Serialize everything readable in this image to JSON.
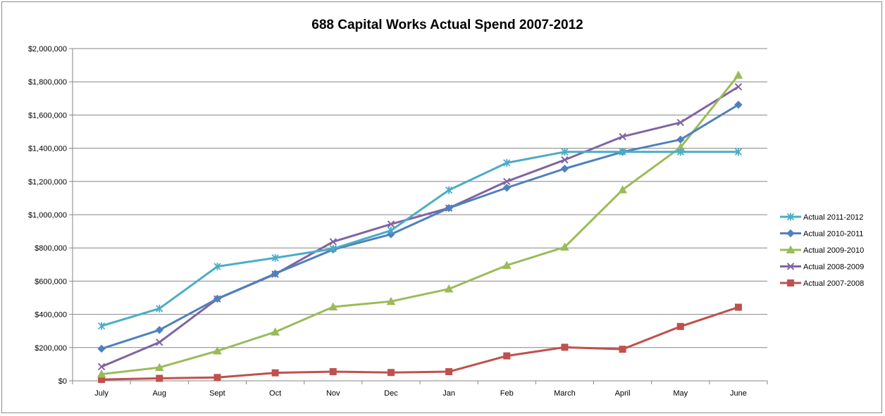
{
  "chart_data": {
    "type": "line",
    "title": "688 Capital Works Actual Spend 2007-2012",
    "xlabel": "",
    "ylabel": "",
    "categories": [
      "July",
      "Aug",
      "Sept",
      "Oct",
      "Nov",
      "Dec",
      "Jan",
      "Feb",
      "March",
      "April",
      "May",
      "June"
    ],
    "ylim": [
      0,
      2000000
    ],
    "yticks": [
      0,
      200000,
      400000,
      600000,
      800000,
      1000000,
      1200000,
      1400000,
      1600000,
      1800000,
      2000000
    ],
    "ytick_labels": [
      "$0",
      "$200,000",
      "$400,000",
      "$600,000",
      "$800,000",
      "$1,000,000",
      "$1,200,000",
      "$1,400,000",
      "$1,600,000",
      "$1,800,000",
      "$2,000,000"
    ],
    "grid": true,
    "legend_position": "right",
    "series": [
      {
        "name": "Actual 2011-2012",
        "color": "#4bacc6",
        "marker": "asterisk",
        "values": [
          330000,
          435000,
          688000,
          740000,
          795000,
          905000,
          1148000,
          1312000,
          1378000,
          1378000,
          1378000,
          1378000
        ]
      },
      {
        "name": "Actual 2010-2011",
        "color": "#4f81bd",
        "marker": "diamond",
        "values": [
          193000,
          306000,
          494000,
          645000,
          790000,
          882000,
          1040000,
          1162000,
          1277000,
          1378000,
          1452000,
          1662000
        ]
      },
      {
        "name": "Actual 2009-2010",
        "color": "#9bbb59",
        "marker": "triangle",
        "values": [
          40000,
          80000,
          180000,
          294000,
          445000,
          478000,
          553000,
          695000,
          805000,
          1150000,
          1405000,
          1840000
        ]
      },
      {
        "name": "Actual 2008-2009",
        "color": "#8064a2",
        "marker": "x",
        "values": [
          85000,
          232000,
          493000,
          642000,
          837000,
          943000,
          1040000,
          1200000,
          1330000,
          1470000,
          1555000,
          1770000
        ]
      },
      {
        "name": "Actual 2007-2008",
        "color": "#c0504d",
        "marker": "square",
        "values": [
          8000,
          15000,
          20000,
          48000,
          55000,
          50000,
          55000,
          150000,
          202000,
          190000,
          327000,
          443000
        ]
      }
    ]
  }
}
